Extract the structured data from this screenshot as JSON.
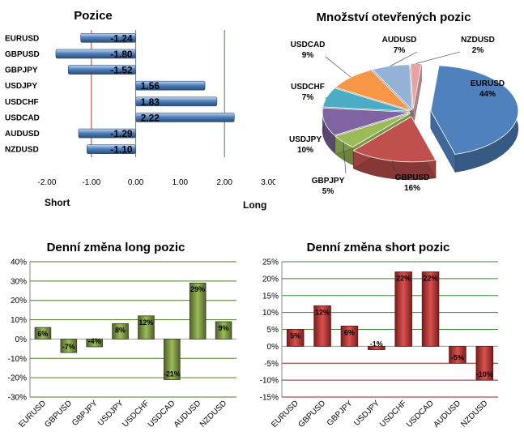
{
  "chart_data": [
    {
      "type": "bar",
      "orientation": "horizontal",
      "title": "Pozice",
      "categories": [
        "EURUSD",
        "GBPUSD",
        "GBPJPY",
        "USDJPY",
        "USDCHF",
        "USDCAD",
        "AUDUSD",
        "NZDUSD"
      ],
      "values": [
        -1.24,
        -1.8,
        -1.52,
        1.56,
        1.83,
        2.22,
        -1.29,
        -1.1
      ],
      "value_labels": [
        "-1.24",
        "-1.80",
        "-1.52",
        "1.56",
        "1.83",
        "2.22",
        "-1.29",
        "-1.10"
      ],
      "xlim": [
        -2,
        3
      ],
      "xticks": [
        "-2.00",
        "-1.00",
        "0.00",
        "1.00",
        "2.00",
        "3.00"
      ],
      "short_label": "Short",
      "long_label": "Long",
      "bar_color": "#4f81bd"
    },
    {
      "type": "pie",
      "title": "Množství otevřených pozic",
      "slices": [
        {
          "label": "EURUSD",
          "value": 44,
          "value_label": "44%",
          "color": "#4f81bd"
        },
        {
          "label": "GBPUSD",
          "value": 16,
          "value_label": "16%",
          "color": "#c0504d"
        },
        {
          "label": "GBPJPY",
          "value": 5,
          "value_label": "5%",
          "color": "#9bbb59"
        },
        {
          "label": "USDJPY",
          "value": 10,
          "value_label": "10%",
          "color": "#8064a2"
        },
        {
          "label": "USDCHF",
          "value": 7,
          "value_label": "7%",
          "color": "#4bacc6"
        },
        {
          "label": "USDCAD",
          "value": 9,
          "value_label": "9%",
          "color": "#f79646"
        },
        {
          "label": "AUDUSD",
          "value": 7,
          "value_label": "7%",
          "color": "#95b3d7"
        },
        {
          "label": "NZDUSD",
          "value": 2,
          "value_label": "2%",
          "color": "#e6a3a3"
        }
      ]
    },
    {
      "type": "bar",
      "title": "Denní změna long pozic",
      "categories": [
        "EURUSD",
        "GBPUSD",
        "GBPJPY",
        "USDJPY",
        "USDCHF",
        "USDCAD",
        "AUDUSD",
        "NZDUSD"
      ],
      "values": [
        6,
        -7,
        -4,
        8,
        12,
        -21,
        29,
        9
      ],
      "value_labels": [
        "6%",
        "-7%",
        "-4%",
        "8%",
        "12%",
        "-21%",
        "29%",
        "9%"
      ],
      "ylim": [
        -30,
        40
      ],
      "yticks": [
        "-30%",
        "-20%",
        "-10%",
        "0%",
        "10%",
        "20%",
        "30%",
        "40%"
      ],
      "bar_color": "#77933c",
      "grid_color": "#4a7d24"
    },
    {
      "type": "bar",
      "title": "Denní změna short pozic",
      "categories": [
        "EURUSD",
        "GBPUSD",
        "GBPJPY",
        "USDJPY",
        "USDCHF",
        "USDCAD",
        "AUDUSD",
        "NZDUSD"
      ],
      "values": [
        5,
        12,
        6,
        -1,
        22,
        22,
        -5,
        -10
      ],
      "value_labels": [
        "5%",
        "12%",
        "6%",
        "-1%",
        "22%",
        "22%",
        "-5%",
        "-10%"
      ],
      "ylim": [
        -15,
        25
      ],
      "yticks": [
        "-15%",
        "-10%",
        "-5%",
        "0%",
        "5%",
        "10%",
        "15%",
        "20%",
        "25%"
      ],
      "bar_color": "#c0392b",
      "grid_color": "#3a8a3a",
      "neg_grid_color": "#9b2222"
    }
  ]
}
